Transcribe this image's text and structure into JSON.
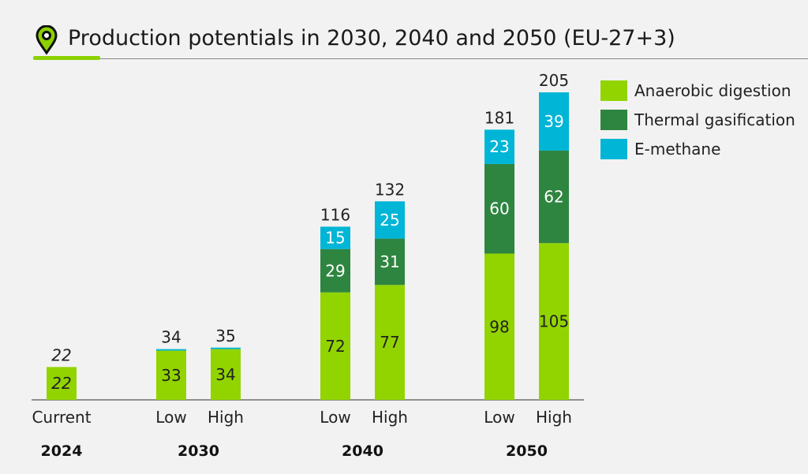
{
  "title": "Production potentials in 2030, 2040 and 2050 (EU-27+3)",
  "icon": "map-pin-icon",
  "chart_data": {
    "type": "bar",
    "stacked": true,
    "title": "Production potentials in 2030, 2040 and 2050 (EU-27+3)",
    "categories": [
      "Current",
      "Low",
      "High",
      "Low",
      "High",
      "Low",
      "High"
    ],
    "groups": [
      {
        "label": "2024",
        "members": [
          0
        ]
      },
      {
        "label": "2030",
        "members": [
          1,
          2
        ]
      },
      {
        "label": "2040",
        "members": [
          3,
          4
        ]
      },
      {
        "label": "2050",
        "members": [
          5,
          6
        ]
      }
    ],
    "series": [
      {
        "name": "Anaerobic digestion",
        "color": "#92d400",
        "values": [
          22,
          33,
          34,
          72,
          77,
          98,
          105
        ],
        "labels": [
          "22",
          "33",
          "34",
          "72",
          "77",
          "98",
          "105"
        ]
      },
      {
        "name": "Thermal gasification",
        "color": "#2e8540",
        "values": [
          0,
          0,
          0,
          29,
          31,
          60,
          62
        ],
        "labels": [
          "",
          "",
          "",
          "29",
          "31",
          "60",
          "62"
        ]
      },
      {
        "name": "E-methane",
        "color": "#00b5d6",
        "values": [
          0,
          1,
          1,
          15,
          25,
          23,
          39
        ],
        "labels": [
          "",
          "",
          "",
          "15",
          "25",
          "23",
          "39"
        ]
      }
    ],
    "totals": [
      "22",
      "34",
      "35",
      "116",
      "132",
      "181",
      "205"
    ],
    "ylim": [
      0,
      205
    ],
    "grid": false,
    "legend": "right"
  }
}
